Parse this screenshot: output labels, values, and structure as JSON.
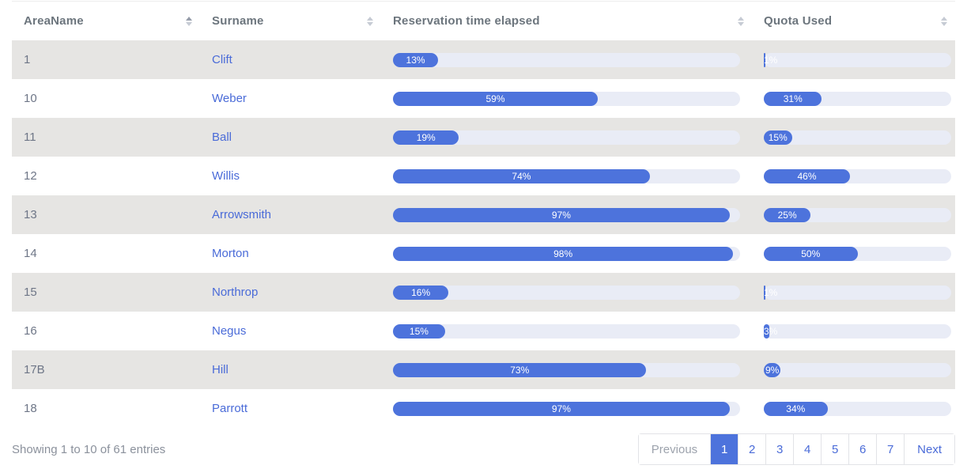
{
  "table": {
    "columns": [
      {
        "label": "AreaName",
        "sort": "asc"
      },
      {
        "label": "Surname",
        "sort": "none"
      },
      {
        "label": "Reservation time elapsed",
        "sort": "none"
      },
      {
        "label": "Quota Used",
        "sort": "none"
      }
    ],
    "rows": [
      {
        "area": "1",
        "surname": "Clift",
        "reservation_pct": 13,
        "reservation_label": "13%",
        "quota_pct": 1,
        "quota_label": "1%"
      },
      {
        "area": "10",
        "surname": "Weber",
        "reservation_pct": 59,
        "reservation_label": "59%",
        "quota_pct": 31,
        "quota_label": "31%"
      },
      {
        "area": "11",
        "surname": "Ball",
        "reservation_pct": 19,
        "reservation_label": "19%",
        "quota_pct": 15,
        "quota_label": "15%"
      },
      {
        "area": "12",
        "surname": "Willis",
        "reservation_pct": 74,
        "reservation_label": "74%",
        "quota_pct": 46,
        "quota_label": "46%"
      },
      {
        "area": "13",
        "surname": "Arrowsmith",
        "reservation_pct": 97,
        "reservation_label": "97%",
        "quota_pct": 25,
        "quota_label": "25%"
      },
      {
        "area": "14",
        "surname": "Morton",
        "reservation_pct": 98,
        "reservation_label": "98%",
        "quota_pct": 50,
        "quota_label": "50%"
      },
      {
        "area": "15",
        "surname": "Northrop",
        "reservation_pct": 16,
        "reservation_label": "16%",
        "quota_pct": 1,
        "quota_label": "1%"
      },
      {
        "area": "16",
        "surname": "Negus",
        "reservation_pct": 15,
        "reservation_label": "15%",
        "quota_pct": 3,
        "quota_label": "3%"
      },
      {
        "area": "17B",
        "surname": "Hill",
        "reservation_pct": 73,
        "reservation_label": "73%",
        "quota_pct": 9,
        "quota_label": "9%"
      },
      {
        "area": "18",
        "surname": "Parrott",
        "reservation_pct": 97,
        "reservation_label": "97%",
        "quota_pct": 34,
        "quota_label": "34%"
      }
    ]
  },
  "footer": {
    "info": "Showing 1 to 10 of 61 entries"
  },
  "pagination": {
    "previous_label": "Previous",
    "next_label": "Next",
    "pages": [
      "1",
      "2",
      "3",
      "4",
      "5",
      "6",
      "7"
    ],
    "active_page": "1"
  },
  "colors": {
    "accent": "#4d73dc",
    "bar_track": "#e9ecf6",
    "row_stripe": "#e6e5e3",
    "link": "#4a6bd8",
    "header_text": "#6c757d"
  }
}
